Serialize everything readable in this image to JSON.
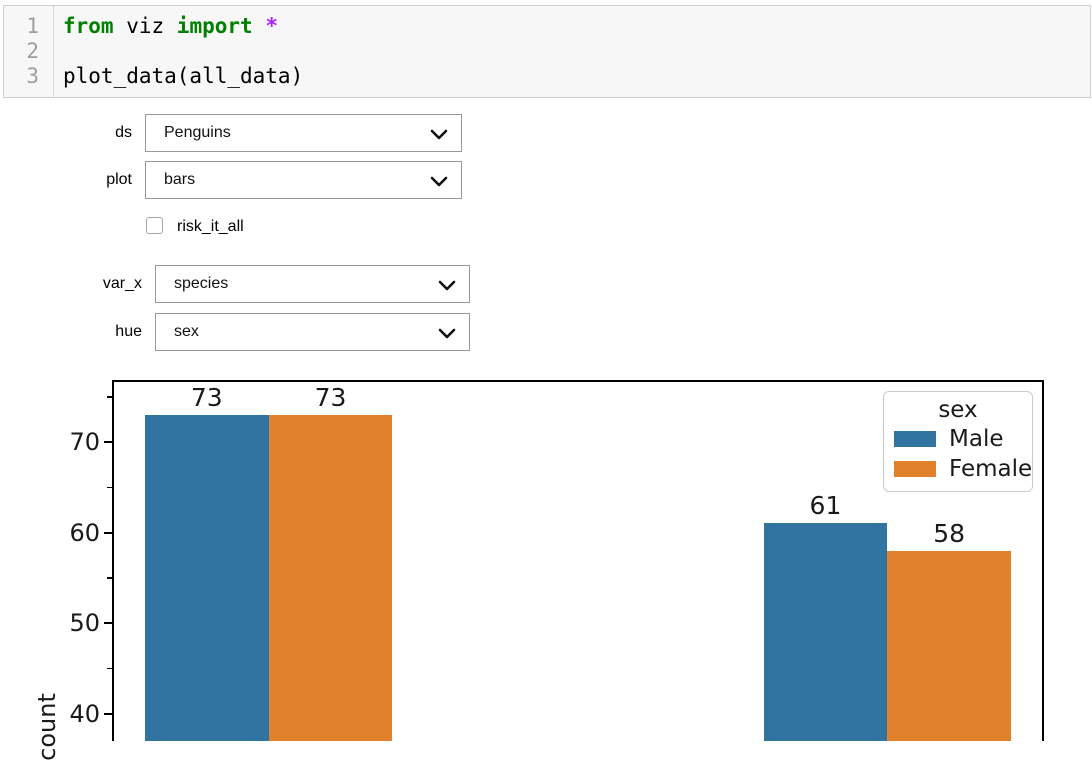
{
  "code_cell": {
    "lines": [
      {
        "number": "1",
        "tokens": [
          {
            "t": "from",
            "c": "keyword"
          },
          {
            "t": " viz ",
            "c": "plain"
          },
          {
            "t": "import",
            "c": "keyword"
          },
          {
            "t": " ",
            "c": "plain"
          },
          {
            "t": "*",
            "c": "operator"
          }
        ]
      },
      {
        "number": "2",
        "tokens": []
      },
      {
        "number": "3",
        "tokens": [
          {
            "t": "plot_data(all_data)",
            "c": "plain"
          }
        ]
      }
    ]
  },
  "widgets": {
    "dropdowns": [
      {
        "label": "ds",
        "value": "Penguins"
      },
      {
        "label": "plot",
        "value": "bars"
      },
      {
        "label": "var_x",
        "value": "species"
      },
      {
        "label": "hue",
        "value": "sex"
      }
    ],
    "checkbox": {
      "label": "risk_it_all",
      "checked": false
    }
  },
  "chart_data": {
    "type": "bar",
    "ylabel": "count",
    "x_axis_labels_visible": false,
    "n_category_slots": 3,
    "series": [
      {
        "name": "Male",
        "color": "#3274a1",
        "points": [
          {
            "slot": 0,
            "value": 73
          },
          {
            "slot": 2,
            "value": 61
          }
        ]
      },
      {
        "name": "Female",
        "color": "#e1812c",
        "points": [
          {
            "slot": 0,
            "value": 73
          },
          {
            "slot": 2,
            "value": 58
          }
        ]
      }
    ],
    "bar_value_labels": [
      "73",
      "73",
      "61",
      "58"
    ],
    "y_ticks_major": [
      70,
      60,
      50,
      40
    ],
    "y_ticks_minor": [
      75,
      65,
      55,
      45
    ],
    "y_axis_visible_range": [
      37,
      77
    ],
    "legend": {
      "title": "sex",
      "location": "upper-right",
      "entries": [
        {
          "label": "Male",
          "color": "#3274a1"
        },
        {
          "label": "Female",
          "color": "#e1812c"
        }
      ]
    }
  }
}
